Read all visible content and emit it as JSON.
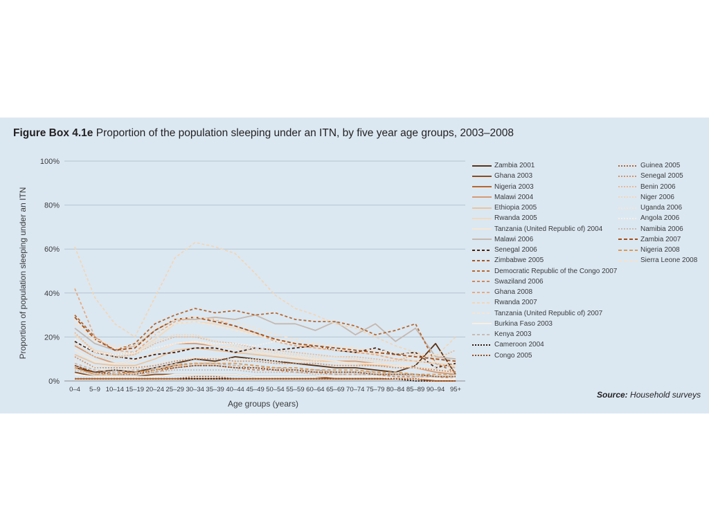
{
  "figure": {
    "label": "Figure Box 4.1e",
    "title": "Proportion of the population sleeping under an ITN, by five year age groups, 2003–2008",
    "source_label": "Source:",
    "source_text": "Household surveys"
  },
  "chart_data": {
    "type": "line",
    "title": "Proportion of the population sleeping under an ITN, by five year age groups, 2003–2008",
    "xlabel": "Age groups (years)",
    "ylabel": "Proportion of population sleeping under an ITN",
    "ylim": [
      0,
      100
    ],
    "yticks": [
      "0%",
      "20%",
      "40%",
      "60%",
      "80%",
      "100%"
    ],
    "ytick_values": [
      0,
      20,
      40,
      60,
      80,
      100
    ],
    "grid": true,
    "legend_position": "right",
    "categories": [
      "0–4",
      "5–9",
      "10–14",
      "15–19",
      "20–24",
      "25–29",
      "30–34",
      "35–39",
      "40–44",
      "45–49",
      "50–54",
      "55–59",
      "60–64",
      "65–69",
      "70–74",
      "75–79",
      "80–84",
      "85–89",
      "90–94",
      "95+"
    ],
    "series": [
      {
        "name": "Zambia 2001",
        "color": "#5a3112",
        "dash": "solid",
        "values": [
          6,
          4,
          5,
          4,
          6,
          8,
          10,
          9,
          11,
          10,
          9,
          8,
          7,
          6,
          6,
          5,
          4,
          7,
          17,
          3
        ]
      },
      {
        "name": "Ghana 2003",
        "color": "#8a4a1c",
        "dash": "solid",
        "values": [
          4,
          2,
          2,
          2,
          3,
          3,
          3,
          3,
          3,
          2,
          2,
          2,
          2,
          1,
          1,
          1,
          1,
          1,
          0,
          0
        ]
      },
      {
        "name": "Nigeria 2003",
        "color": "#b8662b",
        "dash": "solid",
        "values": [
          1,
          1,
          1,
          1,
          1,
          1,
          1,
          1,
          1,
          1,
          1,
          1,
          1,
          1,
          1,
          1,
          1,
          1,
          0,
          0
        ]
      },
      {
        "name": "Malawi 2004",
        "color": "#d79a73",
        "dash": "solid",
        "values": [
          16,
          11,
          8,
          9,
          13,
          17,
          17,
          16,
          15,
          13,
          12,
          11,
          10,
          9,
          9,
          8,
          7,
          6,
          4,
          3
        ]
      },
      {
        "name": "Ethiopia 2005",
        "color": "#ecc49d",
        "dash": "solid",
        "values": [
          12,
          8,
          7,
          7,
          10,
          14,
          15,
          14,
          13,
          12,
          11,
          10,
          9,
          9,
          8,
          7,
          7,
          6,
          5,
          4
        ]
      },
      {
        "name": "Rwanda 2005",
        "color": "#f3d9bd",
        "dash": "solid",
        "values": [
          21,
          14,
          12,
          13,
          19,
          26,
          27,
          26,
          24,
          21,
          19,
          17,
          15,
          14,
          13,
          12,
          10,
          9,
          8,
          7
        ]
      },
      {
        "name": "Tanzania (United Republic of) 2004",
        "color": "#f7e7d4",
        "dash": "solid",
        "values": [
          14,
          9,
          8,
          9,
          13,
          17,
          18,
          16,
          15,
          13,
          12,
          11,
          10,
          9,
          8,
          8,
          7,
          6,
          5,
          4
        ]
      },
      {
        "name": "Malawi 2006",
        "color": "#c5b8ae",
        "dash": "solid",
        "values": [
          24,
          17,
          14,
          16,
          23,
          28,
          28,
          29,
          28,
          30,
          26,
          26,
          23,
          27,
          21,
          26,
          18,
          24,
          11,
          10
        ]
      },
      {
        "name": "Senegal 2006",
        "color": "#4a1d08",
        "dash": "4,3",
        "values": [
          18,
          13,
          11,
          10,
          12,
          13,
          15,
          15,
          13,
          15,
          14,
          15,
          16,
          14,
          13,
          15,
          12,
          13,
          6,
          8
        ]
      },
      {
        "name": "Zimbabwe 2005",
        "color": "#a35322",
        "dash": "4,3",
        "values": [
          7,
          4,
          4,
          4,
          5,
          7,
          8,
          8,
          7,
          6,
          6,
          5,
          5,
          4,
          4,
          4,
          3,
          3,
          2,
          2
        ]
      },
      {
        "name": "Democratic Republic of the Congo 2007",
        "color": "#b8662b",
        "dash": "4,3",
        "values": [
          30,
          20,
          14,
          17,
          26,
          30,
          33,
          31,
          32,
          30,
          31,
          28,
          27,
          27,
          25,
          21,
          23,
          26,
          8,
          4
        ]
      },
      {
        "name": "Swaziland 2006",
        "color": "#d0885a",
        "dash": "4,3",
        "values": [
          6,
          3,
          3,
          3,
          4,
          6,
          7,
          7,
          6,
          5,
          5,
          4,
          4,
          3,
          3,
          3,
          2,
          2,
          2,
          1
        ]
      },
      {
        "name": "Ghana 2008",
        "color": "#e7aa80",
        "dash": "4,3",
        "values": [
          42,
          20,
          14,
          13,
          21,
          27,
          29,
          28,
          25,
          22,
          18,
          16,
          15,
          14,
          13,
          12,
          10,
          9,
          8,
          6
        ]
      },
      {
        "name": "Rwanda 2007",
        "color": "#f2d6b4",
        "dash": "4,3",
        "values": [
          61,
          38,
          26,
          20,
          38,
          56,
          63,
          61,
          58,
          49,
          39,
          33,
          30,
          26,
          24,
          20,
          16,
          13,
          11,
          20
        ]
      },
      {
        "name": "Tanzania (United Republic of) 2007",
        "color": "#f6e6d2",
        "dash": "4,3",
        "values": [
          28,
          18,
          15,
          15,
          21,
          26,
          27,
          25,
          23,
          21,
          19,
          17,
          16,
          15,
          14,
          13,
          12,
          10,
          9,
          8
        ]
      },
      {
        "name": "Burkina Faso 2003",
        "color": "#f9efe3",
        "dash": "solid",
        "values": [
          3,
          2,
          2,
          2,
          2,
          3,
          3,
          3,
          3,
          2,
          2,
          2,
          2,
          2,
          2,
          2,
          1,
          1,
          1,
          1
        ]
      },
      {
        "name": "Kenya 2003",
        "color": "#c9bbb0",
        "dash": "4,3",
        "values": [
          8,
          5,
          4,
          5,
          6,
          8,
          8,
          8,
          7,
          6,
          6,
          5,
          5,
          4,
          4,
          4,
          3,
          3,
          2,
          2
        ]
      },
      {
        "name": "Cameroon 2004",
        "color": "#2e1406",
        "dash": "2,2",
        "values": [
          1,
          1,
          1,
          1,
          1,
          1,
          1,
          1,
          1,
          1,
          1,
          1,
          1,
          1,
          1,
          1,
          1,
          0,
          0,
          0
        ]
      },
      {
        "name": "Congo 2005",
        "color": "#8f4b1d",
        "dash": "2,2",
        "values": [
          7,
          4,
          3,
          3,
          5,
          6,
          7,
          7,
          6,
          6,
          5,
          5,
          4,
          4,
          4,
          3,
          3,
          3,
          2,
          2
        ]
      },
      {
        "name": "Guinea 2005",
        "color": "#b3622c",
        "dash": "2,2",
        "values": [
          1,
          1,
          1,
          1,
          1,
          1,
          2,
          2,
          1,
          1,
          1,
          1,
          1,
          1,
          1,
          1,
          1,
          1,
          0,
          0
        ]
      },
      {
        "name": "Senegal 2005",
        "color": "#d39266",
        "dash": "2,2",
        "values": [
          11,
          6,
          6,
          6,
          7,
          9,
          10,
          10,
          9,
          9,
          8,
          8,
          8,
          7,
          7,
          7,
          6,
          6,
          5,
          4
        ]
      },
      {
        "name": "Benin 2006",
        "color": "#e9b894",
        "dash": "2,2",
        "values": [
          22,
          13,
          11,
          12,
          17,
          20,
          20,
          18,
          17,
          15,
          14,
          13,
          12,
          11,
          11,
          10,
          9,
          12,
          10,
          14
        ]
      },
      {
        "name": "Niger 2006",
        "color": "#f2d7b9",
        "dash": "2,2",
        "values": [
          17,
          11,
          10,
          12,
          18,
          21,
          21,
          18,
          16,
          14,
          13,
          12,
          11,
          11,
          10,
          9,
          9,
          9,
          8,
          7
        ]
      },
      {
        "name": "Uganda 2006",
        "color": "#f6e6d2",
        "dash": "2,2",
        "values": [
          9,
          6,
          5,
          6,
          8,
          10,
          11,
          11,
          10,
          10,
          9,
          9,
          9,
          8,
          8,
          8,
          7,
          7,
          6,
          5
        ]
      },
      {
        "name": "Angola 2006",
        "color": "#f9efe3",
        "dash": "2,2",
        "values": [
          19,
          13,
          12,
          13,
          15,
          17,
          18,
          17,
          17,
          16,
          18,
          17,
          16,
          14,
          14,
          13,
          12,
          11,
          10,
          9
        ]
      },
      {
        "name": "Namibia 2006",
        "color": "#c9bbb0",
        "dash": "2,2",
        "values": [
          5,
          3,
          3,
          3,
          4,
          5,
          5,
          5,
          5,
          4,
          4,
          4,
          3,
          3,
          3,
          3,
          3,
          2,
          2,
          2
        ]
      },
      {
        "name": "Zambia 2007",
        "color": "#a44c12",
        "dash": "5,3",
        "values": [
          29,
          19,
          14,
          15,
          23,
          28,
          29,
          27,
          25,
          22,
          19,
          17,
          16,
          15,
          14,
          13,
          12,
          11,
          10,
          9
        ]
      },
      {
        "name": "Nigeria 2008",
        "color": "#dd9a55",
        "dash": "5,3",
        "values": [
          6,
          3,
          3,
          4,
          5,
          7,
          8,
          8,
          8,
          7,
          6,
          6,
          5,
          5,
          5,
          4,
          4,
          3,
          3,
          3
        ]
      },
      {
        "name": "Sierra Leone 2008",
        "color": "#f4e2cc",
        "dash": "5,3",
        "values": [
          26,
          19,
          16,
          16,
          24,
          28,
          29,
          28,
          27,
          24,
          21,
          19,
          17,
          16,
          15,
          14,
          13,
          12,
          12,
          11
        ]
      }
    ]
  }
}
